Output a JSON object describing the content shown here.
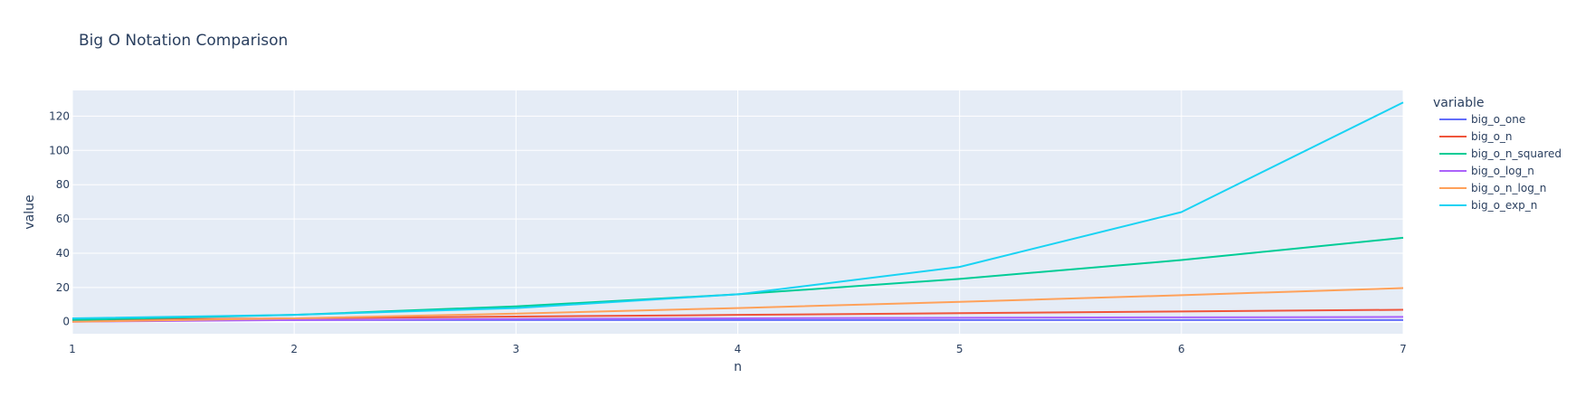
{
  "chart_data": {
    "type": "line",
    "title": "Big O Notation Comparison",
    "xlabel": "n",
    "ylabel": "value",
    "x": [
      1,
      2,
      3,
      4,
      5,
      6,
      7
    ],
    "xlim": [
      1,
      7
    ],
    "ylim": [
      -7,
      135
    ],
    "xticks": [
      "1",
      "2",
      "3",
      "4",
      "5",
      "6",
      "7"
    ],
    "yticks": [
      0,
      20,
      40,
      60,
      80,
      100,
      120
    ],
    "grid": true,
    "legend_title": "variable",
    "legend_position": "right",
    "series": [
      {
        "name": "big_o_one",
        "color": "#636efa",
        "values": [
          1,
          1,
          1,
          1,
          1,
          1,
          1
        ]
      },
      {
        "name": "big_o_n",
        "color": "#EF553B",
        "values": [
          1,
          2,
          3,
          4,
          5,
          6,
          7
        ]
      },
      {
        "name": "big_o_n_squared",
        "color": "#00cc96",
        "values": [
          1,
          4,
          9,
          16,
          25,
          36,
          49
        ]
      },
      {
        "name": "big_o_log_n",
        "color": "#ab63fa",
        "values": [
          0,
          1,
          1.58,
          2,
          2.32,
          2.58,
          2.81
        ]
      },
      {
        "name": "big_o_n_log_n",
        "color": "#FFA15A",
        "values": [
          0,
          2,
          4.75,
          8,
          11.61,
          15.51,
          19.65
        ]
      },
      {
        "name": "big_o_exp_n",
        "color": "#19d3f3",
        "values": [
          2,
          4,
          8,
          16,
          32,
          64,
          128
        ]
      }
    ]
  }
}
